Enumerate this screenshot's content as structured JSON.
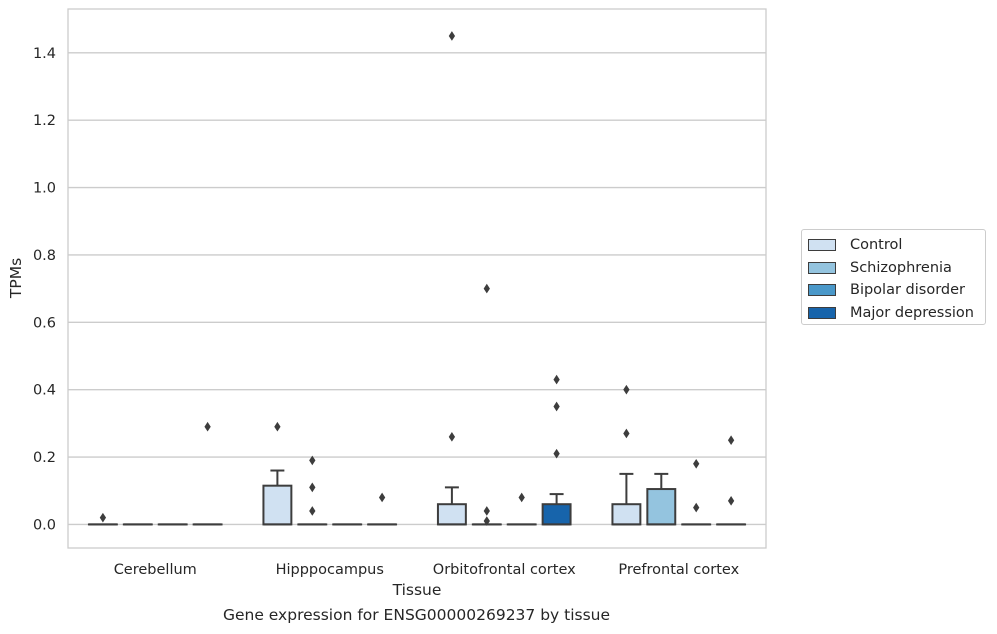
{
  "chart_data": {
    "type": "box",
    "title": "",
    "xlabel": "Tissue",
    "ylabel": "TPMs",
    "caption": "Gene expression for ENSG00000269237 by tissue",
    "ylim": [
      -0.07,
      1.53
    ],
    "yticks": [
      "0.0",
      "0.2",
      "0.4",
      "0.6",
      "0.8",
      "1.0",
      "1.2",
      "1.4"
    ],
    "categories": [
      "Cerebellum",
      "Hipppocampus",
      "Orbitofrontal cortex",
      "Prefrontal cortex"
    ],
    "grid": true,
    "legend_position": "right",
    "series": [
      {
        "name": "Control",
        "color": "#d0e1f2",
        "boxes": [
          {
            "q1": 0,
            "median": 0,
            "q3": 0,
            "whisker_low": 0,
            "whisker_high": 0,
            "outliers": [
              0.02
            ]
          },
          {
            "q1": 0,
            "median": 0,
            "q3": 0.115,
            "whisker_low": 0,
            "whisker_high": 0.16,
            "outliers": [
              0.29
            ]
          },
          {
            "q1": 0,
            "median": 0,
            "q3": 0.06,
            "whisker_low": 0,
            "whisker_high": 0.11,
            "outliers": [
              1.45,
              0.26
            ]
          },
          {
            "q1": 0,
            "median": 0,
            "q3": 0.06,
            "whisker_low": 0,
            "whisker_high": 0.15,
            "outliers": [
              0.4,
              0.27
            ]
          }
        ]
      },
      {
        "name": "Schizophrenia",
        "color": "#94c4df",
        "boxes": [
          {
            "q1": 0,
            "median": 0,
            "q3": 0,
            "whisker_low": 0,
            "whisker_high": 0,
            "outliers": []
          },
          {
            "q1": 0,
            "median": 0,
            "q3": 0,
            "whisker_low": 0,
            "whisker_high": 0,
            "outliers": [
              0.19,
              0.11,
              0.04
            ]
          },
          {
            "q1": 0,
            "median": 0,
            "q3": 0,
            "whisker_low": 0,
            "whisker_high": 0,
            "outliers": [
              0.7,
              0.04,
              0.01
            ]
          },
          {
            "q1": 0,
            "median": 0,
            "q3": 0.105,
            "whisker_low": 0,
            "whisker_high": 0.15,
            "outliers": []
          }
        ]
      },
      {
        "name": "Bipolar disorder",
        "color": "#4a98c9",
        "boxes": [
          {
            "q1": 0,
            "median": 0,
            "q3": 0,
            "whisker_low": 0,
            "whisker_high": 0,
            "outliers": []
          },
          {
            "q1": 0,
            "median": 0,
            "q3": 0,
            "whisker_low": 0,
            "whisker_high": 0,
            "outliers": []
          },
          {
            "q1": 0,
            "median": 0,
            "q3": 0,
            "whisker_low": 0,
            "whisker_high": 0,
            "outliers": [
              0.08
            ]
          },
          {
            "q1": 0,
            "median": 0,
            "q3": 0,
            "whisker_low": 0,
            "whisker_high": 0,
            "outliers": [
              0.18,
              0.05
            ]
          }
        ]
      },
      {
        "name": "Major depression",
        "color": "#1764ab",
        "boxes": [
          {
            "q1": 0,
            "median": 0,
            "q3": 0,
            "whisker_low": 0,
            "whisker_high": 0,
            "outliers": [
              0.29
            ]
          },
          {
            "q1": 0,
            "median": 0,
            "q3": 0,
            "whisker_low": 0,
            "whisker_high": 0,
            "outliers": [
              0.08
            ]
          },
          {
            "q1": 0,
            "median": 0,
            "q3": 0.06,
            "whisker_low": 0,
            "whisker_high": 0.09,
            "outliers": [
              0.43,
              0.35,
              0.21
            ]
          },
          {
            "q1": 0,
            "median": 0,
            "q3": 0,
            "whisker_low": 0,
            "whisker_high": 0,
            "outliers": [
              0.25,
              0.07
            ]
          }
        ]
      }
    ]
  }
}
